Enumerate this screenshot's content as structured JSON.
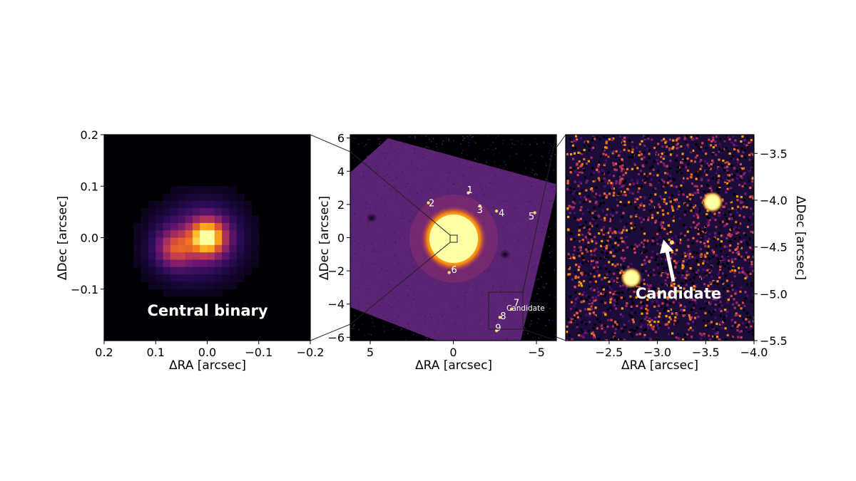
{
  "chart_data": [
    {
      "type": "heatmap",
      "panel": "left",
      "colormap": "inferno",
      "xlabel": "ΔRA [arcsec]",
      "ylabel": "ΔDec [arcsec]",
      "xlim": [
        0.2,
        -0.2
      ],
      "ylim": [
        -0.2,
        0.2
      ],
      "xticks": [
        0.2,
        0.1,
        0.0,
        -0.1,
        -0.2
      ],
      "xtick_labels": [
        "0.2",
        "0.1",
        "0.0",
        "−0.1",
        "−0.2"
      ],
      "yticks": [
        0.2,
        0.1,
        0.0,
        -0.1
      ],
      "ytick_labels": [
        "0.2",
        "0.1",
        "0.0",
        "−0.1"
      ],
      "annotation": "Central binary",
      "sources": [
        {
          "x": 0.0,
          "y": 0.0,
          "peak": 1.0
        },
        {
          "x": 0.06,
          "y": -0.02,
          "peak": 0.45
        }
      ]
    },
    {
      "type": "heatmap",
      "panel": "middle",
      "colormap": "inferno",
      "xlabel": "ΔRA [arcsec]",
      "ylabel": "ΔDec [arcsec]",
      "xlim": [
        6.2,
        -6.2
      ],
      "ylim": [
        -6.2,
        6.2
      ],
      "xticks": [
        5,
        0,
        -5
      ],
      "xtick_labels": [
        "5",
        "0",
        "−5"
      ],
      "yticks": [
        6,
        4,
        2,
        0,
        -2,
        -4,
        -6
      ],
      "ytick_labels": [
        "6",
        "4",
        "2",
        "0",
        "−2",
        "−4",
        "−6"
      ],
      "candidate_label": "Candidate",
      "point_sources": [
        {
          "label": "1",
          "ra": -0.9,
          "dec": 2.7,
          "lx": -1.0,
          "ly": 2.9
        },
        {
          "label": "2",
          "ra": 1.5,
          "dec": 2.1,
          "lx": 1.3,
          "ly": 2.1
        },
        {
          "label": "3",
          "ra": -1.6,
          "dec": 1.9,
          "lx": -1.6,
          "ly": 1.7
        },
        {
          "label": "4",
          "ra": -2.6,
          "dec": 1.6,
          "lx": -2.9,
          "ly": 1.5
        },
        {
          "label": "5",
          "ra": -4.9,
          "dec": 1.5,
          "lx": -4.7,
          "ly": 1.3
        },
        {
          "label": "6",
          "ra": 0.25,
          "dec": -2.1,
          "lx": -0.05,
          "ly": -1.9
        },
        {
          "label": "7",
          "ra": -3.5,
          "dec": -4.3,
          "lx": -3.8,
          "ly": -3.9
        },
        {
          "label": "8",
          "ra": -2.8,
          "dec": -4.8,
          "lx": -3.0,
          "ly": -4.7
        },
        {
          "label": "9",
          "ra": -2.6,
          "dec": -5.6,
          "lx": -2.7,
          "ly": -5.4
        }
      ]
    },
    {
      "type": "heatmap",
      "panel": "right",
      "colormap": "inferno",
      "xlabel": "ΔRA [arcsec]",
      "ylabel": "ΔDec [arcsec]",
      "xlim": [
        -2.05,
        -4.0
      ],
      "ylim": [
        -5.5,
        -3.3
      ],
      "xticks": [
        -2.5,
        -3.0,
        -3.5,
        -4.0
      ],
      "xtick_labels": [
        "−2.5",
        "−3.0",
        "−3.5",
        "−4.0"
      ],
      "yticks": [
        -3.5,
        -4.0,
        -4.5,
        -5.0,
        -5.5
      ],
      "ytick_labels": [
        "−3.5",
        "−4.0",
        "−4.5",
        "−5.0",
        "−5.5"
      ],
      "annotation": "Candidate",
      "sources": [
        {
          "x": -3.57,
          "y": -4.02,
          "kind": "star"
        },
        {
          "x": -2.73,
          "y": -4.83,
          "kind": "star"
        },
        {
          "x": -3.15,
          "y": -4.45,
          "kind": "candidate"
        }
      ]
    }
  ]
}
